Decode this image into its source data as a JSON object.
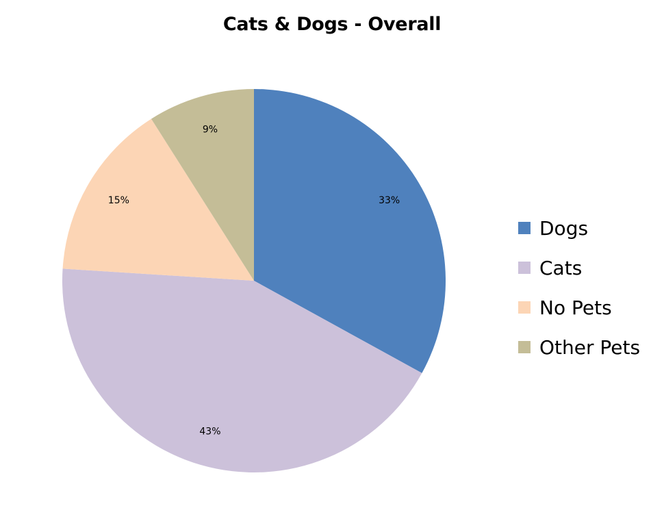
{
  "chart_data": {
    "type": "pie",
    "title": "Cats & Dogs - Overall",
    "legend_position": "right",
    "slices": [
      {
        "name": "Dogs",
        "value": 33,
        "label": "33%",
        "color": "#4F81BD"
      },
      {
        "name": "Cats",
        "value": 43,
        "label": "43%",
        "color": "#CCC1DA"
      },
      {
        "name": "No Pets",
        "value": 15,
        "label": "15%",
        "color": "#FCD5B5"
      },
      {
        "name": "Other Pets",
        "value": 9,
        "label": "9%",
        "color": "#C4BD97"
      }
    ]
  }
}
